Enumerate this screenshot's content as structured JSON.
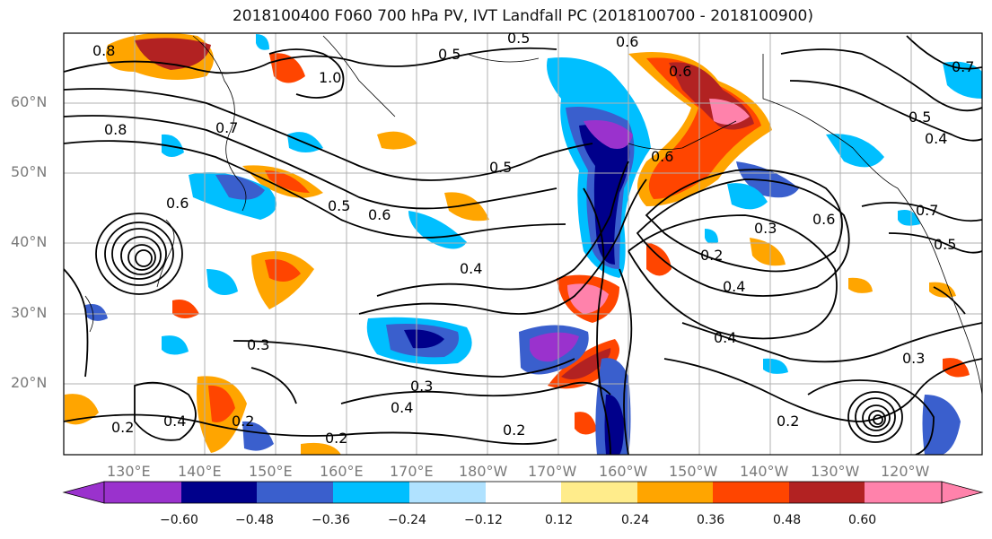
{
  "title": "2018100400 F060 700 hPa PV, IVT Landfall PC (2018100700 - 2018100900)",
  "lat_labels": [
    "60°N",
    "50°N",
    "40°N",
    "30°N",
    "20°N"
  ],
  "lon_labels": [
    "130°E",
    "140°E",
    "150°E",
    "160°E",
    "170°E",
    "180°W",
    "170°W",
    "160°W",
    "150°W",
    "140°W",
    "130°W",
    "120°W"
  ],
  "colorbar": {
    "ticks": [
      "−0.60",
      "−0.48",
      "−0.36",
      "−0.24",
      "−0.12",
      "0.12",
      "0.24",
      "0.36",
      "0.48",
      "0.60"
    ],
    "colors": [
      "#9a32cd",
      "#00008b",
      "#3a5fcd",
      "#00bfff",
      "#b0e2ff",
      "#ffffff",
      "#ffec8b",
      "#ffa500",
      "#ff4500",
      "#b22222",
      "#ff82ab"
    ]
  },
  "contour_labels": [
    {
      "text": "0.5"
    },
    {
      "text": "0.6"
    },
    {
      "text": "0.5"
    },
    {
      "text": "1.0"
    },
    {
      "text": "0.8"
    },
    {
      "text": "0.7"
    },
    {
      "text": "0.8"
    },
    {
      "text": "0.6"
    },
    {
      "text": "0.5"
    },
    {
      "text": "0.6"
    },
    {
      "text": "0.6"
    },
    {
      "text": "0.5"
    },
    {
      "text": "0.4"
    },
    {
      "text": "0.3"
    },
    {
      "text": "0.3"
    },
    {
      "text": "0.4"
    },
    {
      "text": "0.2"
    },
    {
      "text": "0.2"
    },
    {
      "text": "0.2"
    },
    {
      "text": "0.4"
    },
    {
      "text": "0.2"
    },
    {
      "text": "0.4"
    },
    {
      "text": "0.4"
    },
    {
      "text": "0.2"
    },
    {
      "text": "0.3"
    },
    {
      "text": "0.6"
    },
    {
      "text": "0.7"
    },
    {
      "text": "0.5"
    },
    {
      "text": "0.4"
    },
    {
      "text": "0.5"
    },
    {
      "text": "0.3"
    },
    {
      "text": "0.6"
    },
    {
      "text": "0.2"
    },
    {
      "text": "0.7"
    }
  ]
}
